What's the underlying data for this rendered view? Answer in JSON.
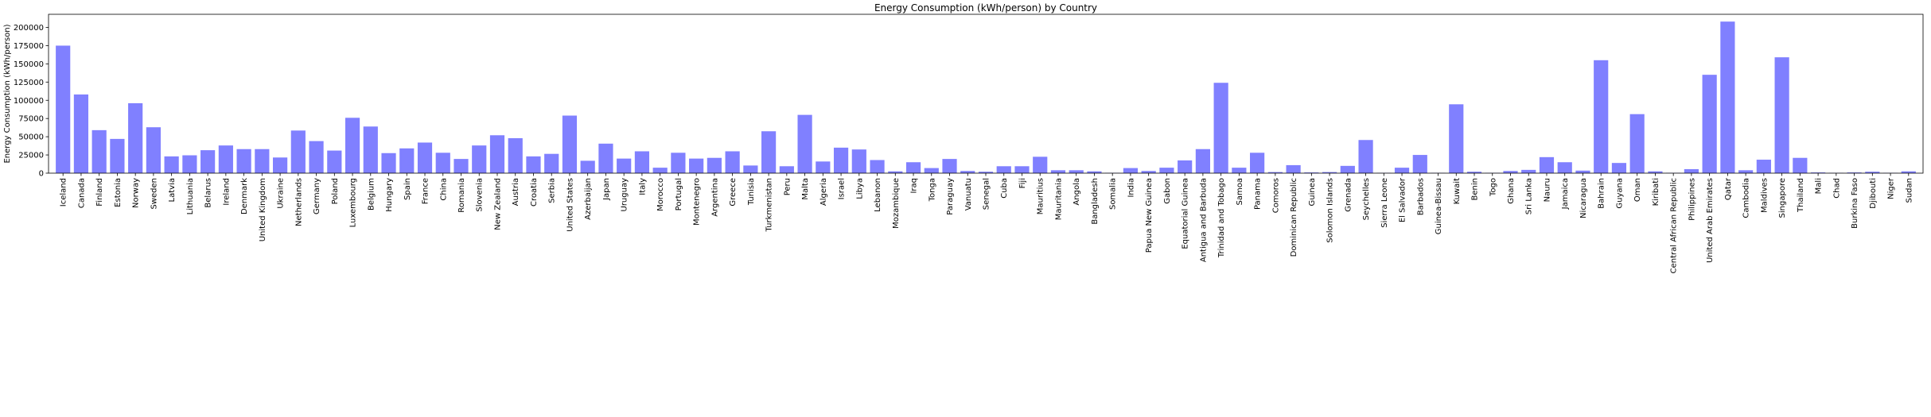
{
  "chart_data": {
    "type": "bar",
    "title": "Energy Consumption (kWh/person) by Country",
    "xlabel": "",
    "ylabel": "Energy Consumption (kWh/person)",
    "ylim": [
      0,
      218000
    ],
    "yticks": [
      0,
      25000,
      50000,
      75000,
      100000,
      125000,
      150000,
      175000,
      200000
    ],
    "grid": false,
    "bar_color": "#8080ff",
    "categories": [
      "Iceland",
      "Canada",
      "Finland",
      "Estonia",
      "Norway",
      "Sweden",
      "Latvia",
      "Lithuania",
      "Belarus",
      "Ireland",
      "Denmark",
      "United Kingdom",
      "Ukraine",
      "Netherlands",
      "Germany",
      "Poland",
      "Luxembourg",
      "Belgium",
      "Hungary",
      "Spain",
      "France",
      "China",
      "Romania",
      "Slovenia",
      "New Zealand",
      "Austria",
      "Croatia",
      "Serbia",
      "United States",
      "Azerbaijan",
      "Japan",
      "Uruguay",
      "Italy",
      "Morocco",
      "Portugal",
      "Montenegro",
      "Argentina",
      "Greece",
      "Tunisia",
      "Turkmenistan",
      "Peru",
      "Malta",
      "Algeria",
      "Israel",
      "Libya",
      "Lebanon",
      "Mozambique",
      "Iraq",
      "Tonga",
      "Paraguay",
      "Vanuatu",
      "Senegal",
      "Cuba",
      "Fiji",
      "Mauritius",
      "Mauritania",
      "Angola",
      "Bangladesh",
      "Somalia",
      "India",
      "Papua New Guinea",
      "Gabon",
      "Equatorial Guinea",
      "Antigua and Barbuda",
      "Trinidad and Tobago",
      "Samoa",
      "Panama",
      "Comoros",
      "Dominican Republic",
      "Guinea",
      "Solomon Islands",
      "Grenada",
      "Seychelles",
      "Sierra Leone",
      "El Salvador",
      "Barbados",
      "Guinea-Bissau",
      "Kuwait",
      "Benin",
      "Togo",
      "Ghana",
      "Sri Lanka",
      "Nauru",
      "Jamaica",
      "Nicaragua",
      "Bahrain",
      "Guyana",
      "Oman",
      "Kiribati",
      "Central African Republic",
      "Philippines",
      "United Arab Emirates",
      "Qatar",
      "Cambodia",
      "Maldives",
      "Singapore",
      "Thailand",
      "Mali",
      "Chad",
      "Burkina Faso",
      "Djibouti",
      "Niger",
      "Sudan"
    ],
    "values": [
      175000,
      108000,
      59000,
      47000,
      96000,
      63000,
      23000,
      24500,
      31500,
      38000,
      33000,
      33000,
      21500,
      58500,
      44000,
      31000,
      76000,
      64000,
      27500,
      34000,
      42000,
      28000,
      19500,
      38000,
      52000,
      48000,
      23000,
      26500,
      79000,
      17000,
      40500,
      20000,
      30000,
      7500,
      28000,
      20000,
      21000,
      30000,
      10500,
      57500,
      9500,
      80000,
      16000,
      35000,
      32500,
      18000,
      2500,
      15000,
      7000,
      19500,
      3000,
      2000,
      9500,
      9500,
      22500,
      4000,
      4000,
      2500,
      500,
      7000,
      3000,
      7500,
      17500,
      33000,
      124000,
      7500,
      28000,
      1500,
      11000,
      1000,
      1500,
      10000,
      45500,
      500,
      7500,
      25000,
      500,
      94500,
      2000,
      500,
      3000,
      4500,
      22000,
      15000,
      3500,
      155000,
      14000,
      81000,
      2500,
      500,
      5500,
      135000,
      208000,
      4000,
      18500,
      159000,
      21000,
      1000,
      500,
      1000,
      2000,
      500,
      2500
    ]
  }
}
